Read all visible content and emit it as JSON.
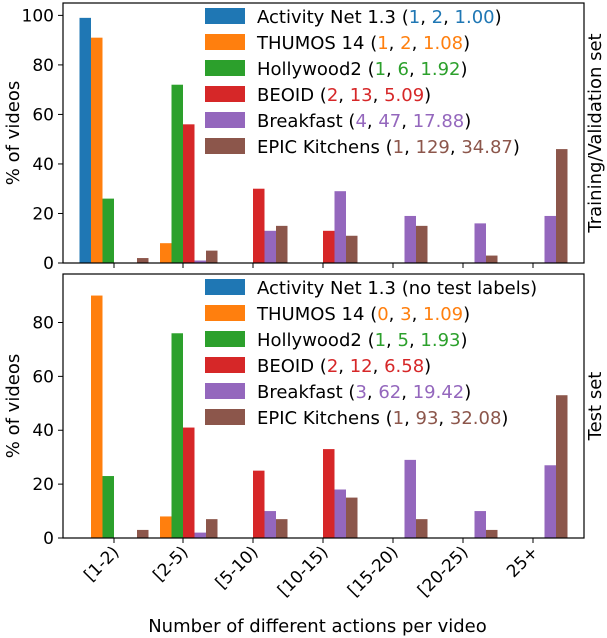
{
  "chart_data": [
    {
      "type": "bar",
      "panel_label": "Training/Validation set",
      "ylabel": "% of videos",
      "ylim": [
        0,
        105
      ],
      "yticks": [
        0,
        20,
        40,
        60,
        80,
        100
      ],
      "categories": [
        "[1-2)",
        "[2-5)",
        "[5-10)",
        "[10-15)",
        "[15-20)",
        "[20-25)",
        "25+"
      ],
      "grid": false,
      "legend_position": "top-right",
      "series": [
        {
          "name": "Activity Net 1.3",
          "stats": [
            "1",
            "2",
            "1.00"
          ],
          "color": "#1f77b4",
          "values": [
            99,
            0,
            0,
            0,
            0,
            0,
            0
          ]
        },
        {
          "name": "THUMOS 14",
          "stats": [
            "1",
            "2",
            "1.08"
          ],
          "color": "#ff7f0e",
          "values": [
            91,
            8,
            0,
            0,
            0,
            0,
            0
          ]
        },
        {
          "name": "Hollywood2",
          "stats": [
            "1",
            "6",
            "1.92"
          ],
          "color": "#2ca02c",
          "values": [
            26,
            72,
            0,
            0,
            0,
            0,
            0
          ]
        },
        {
          "name": "BEOID",
          "stats": [
            "2",
            "13",
            "5.09"
          ],
          "color": "#d62728",
          "values": [
            0,
            56,
            30,
            13,
            0,
            0,
            0
          ]
        },
        {
          "name": "Breakfast",
          "stats": [
            "4",
            "47",
            "17.88"
          ],
          "color": "#9467bd",
          "values": [
            0,
            1,
            13,
            29,
            19,
            16,
            19
          ]
        },
        {
          "name": "EPIC Kitchens",
          "stats": [
            "1",
            "129",
            "34.87"
          ],
          "color": "#8c564b",
          "values": [
            2,
            5,
            15,
            11,
            15,
            3,
            46
          ]
        }
      ]
    },
    {
      "type": "bar",
      "panel_label": "Test set",
      "ylabel": "% of videos",
      "xlabel": "Number of different actions per video",
      "ylim": [
        0,
        98
      ],
      "yticks": [
        0,
        20,
        40,
        60,
        80
      ],
      "categories": [
        "[1-2)",
        "[2-5)",
        "[5-10)",
        "[10-15)",
        "[15-20)",
        "[20-25)",
        "25+"
      ],
      "grid": false,
      "legend_position": "top-right",
      "series": [
        {
          "name": "Activity Net 1.3",
          "note": "(no test labels)",
          "color": "#1f77b4",
          "values": [
            0,
            0,
            0,
            0,
            0,
            0,
            0
          ]
        },
        {
          "name": "THUMOS 14",
          "stats": [
            "0",
            "3",
            "1.09"
          ],
          "color": "#ff7f0e",
          "values": [
            90,
            8,
            0,
            0,
            0,
            0,
            0
          ]
        },
        {
          "name": "Hollywood2",
          "stats": [
            "1",
            "5",
            "1.93"
          ],
          "color": "#2ca02c",
          "values": [
            23,
            76,
            0,
            0,
            0,
            0,
            0
          ]
        },
        {
          "name": "BEOID",
          "stats": [
            "2",
            "12",
            "6.58"
          ],
          "color": "#d62728",
          "values": [
            0,
            41,
            25,
            33,
            0,
            0,
            0
          ]
        },
        {
          "name": "Breakfast",
          "stats": [
            "3",
            "62",
            "19.42"
          ],
          "color": "#9467bd",
          "values": [
            0,
            2,
            10,
            18,
            29,
            10,
            27
          ]
        },
        {
          "name": "EPIC Kitchens",
          "stats": [
            "1",
            "93",
            "32.08"
          ],
          "color": "#8c564b",
          "values": [
            3,
            7,
            7,
            15,
            7,
            3,
            53
          ]
        }
      ]
    }
  ]
}
